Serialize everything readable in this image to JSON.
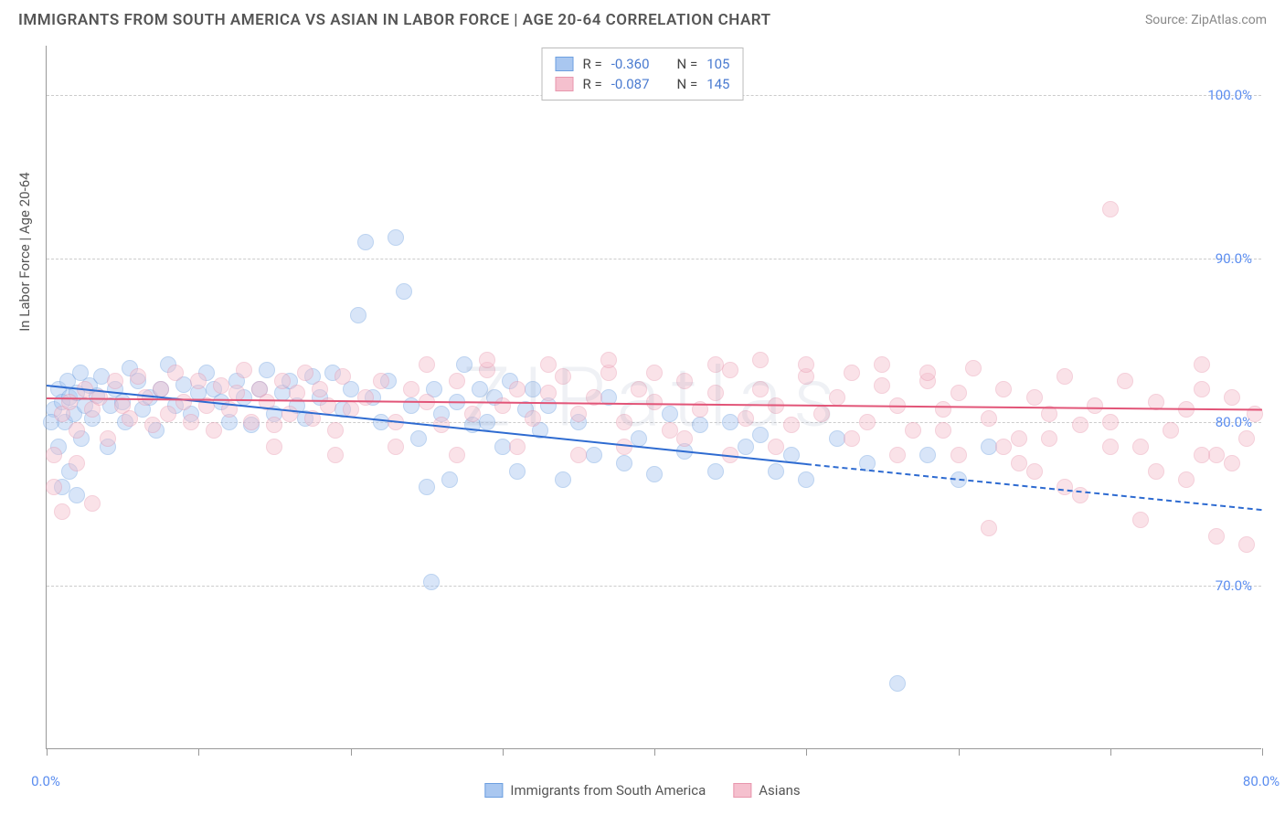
{
  "title": "IMMIGRANTS FROM SOUTH AMERICA VS ASIAN IN LABOR FORCE | AGE 20-64 CORRELATION CHART",
  "source": "Source: ZipAtlas.com",
  "watermark": "ZIPatlas",
  "y_axis_label": "In Labor Force | Age 20-64",
  "chart": {
    "type": "scatter",
    "background_color": "#ffffff",
    "grid_color": "#cccccc",
    "axis_color": "#999999",
    "xlim": [
      0,
      80
    ],
    "ylim": [
      60,
      103
    ],
    "x_ticks": [
      0,
      10,
      20,
      30,
      40,
      50,
      60,
      70,
      80
    ],
    "x_tick_labels_shown": {
      "0": "0.0%",
      "80": "80.0%"
    },
    "y_ticks": [
      70,
      80,
      90,
      100
    ],
    "y_tick_labels": {
      "70": "70.0%",
      "80": "80.0%",
      "90": "90.0%",
      "100": "100.0%"
    },
    "label_color": "#5b8def",
    "label_fontsize": 15,
    "marker_radius": 9,
    "marker_opacity": 0.45,
    "series": [
      {
        "name": "Immigrants from South America",
        "color_fill": "#a9c7f0",
        "color_stroke": "#6d9fe0",
        "trend_color": "#2e6bd1",
        "R": "-0.360",
        "N": "105",
        "trend": {
          "x1": 0,
          "y1": 82.3,
          "x2_solid": 50,
          "y2_solid": 77.5,
          "x2_dash": 80,
          "y2_dash": 74.7
        },
        "points": [
          [
            0.5,
            80.8
          ],
          [
            0.8,
            82.0
          ],
          [
            1.0,
            81.2
          ],
          [
            1.2,
            80.0
          ],
          [
            1.4,
            82.5
          ],
          [
            1.5,
            81.5
          ],
          [
            1.8,
            80.5
          ],
          [
            2.0,
            81.8
          ],
          [
            2.2,
            83.0
          ],
          [
            2.3,
            79.0
          ],
          [
            2.5,
            81.0
          ],
          [
            2.8,
            82.2
          ],
          [
            3.0,
            80.2
          ],
          [
            3.3,
            81.6
          ],
          [
            3.6,
            82.8
          ],
          [
            4.0,
            78.5
          ],
          [
            4.2,
            81.0
          ],
          [
            4.5,
            82.0
          ],
          [
            5.0,
            81.2
          ],
          [
            5.2,
            80.0
          ],
          [
            5.5,
            83.3
          ],
          [
            6.0,
            82.5
          ],
          [
            6.3,
            80.8
          ],
          [
            6.8,
            81.5
          ],
          [
            7.2,
            79.5
          ],
          [
            7.5,
            82.0
          ],
          [
            8.0,
            83.5
          ],
          [
            8.5,
            81.0
          ],
          [
            9.0,
            82.3
          ],
          [
            9.5,
            80.5
          ],
          [
            10.0,
            81.8
          ],
          [
            10.5,
            83.0
          ],
          [
            11.0,
            82.0
          ],
          [
            11.5,
            81.2
          ],
          [
            12.0,
            80.0
          ],
          [
            12.5,
            82.5
          ],
          [
            13.0,
            81.5
          ],
          [
            13.5,
            79.8
          ],
          [
            14.0,
            82.0
          ],
          [
            14.5,
            83.2
          ],
          [
            15.0,
            80.5
          ],
          [
            15.5,
            81.8
          ],
          [
            16.0,
            82.5
          ],
          [
            16.5,
            81.0
          ],
          [
            17.0,
            80.2
          ],
          [
            17.5,
            82.8
          ],
          [
            18.0,
            81.5
          ],
          [
            18.8,
            83.0
          ],
          [
            19.5,
            80.8
          ],
          [
            20.0,
            82.0
          ],
          [
            20.5,
            86.5
          ],
          [
            21.0,
            91.0
          ],
          [
            21.5,
            81.5
          ],
          [
            22.0,
            80.0
          ],
          [
            22.5,
            82.5
          ],
          [
            23.0,
            91.3
          ],
          [
            23.5,
            88.0
          ],
          [
            24.0,
            81.0
          ],
          [
            24.5,
            79.0
          ],
          [
            25.0,
            76.0
          ],
          [
            25.3,
            70.2
          ],
          [
            25.5,
            82.0
          ],
          [
            26.0,
            80.5
          ],
          [
            26.5,
            76.5
          ],
          [
            27.0,
            81.2
          ],
          [
            27.5,
            83.5
          ],
          [
            28.0,
            79.8
          ],
          [
            28.5,
            82.0
          ],
          [
            29.0,
            80.0
          ],
          [
            29.5,
            81.5
          ],
          [
            30.0,
            78.5
          ],
          [
            30.5,
            82.5
          ],
          [
            31.0,
            77.0
          ],
          [
            31.5,
            80.8
          ],
          [
            32.0,
            82.0
          ],
          [
            32.5,
            79.5
          ],
          [
            33.0,
            81.0
          ],
          [
            34.0,
            76.5
          ],
          [
            35.0,
            80.0
          ],
          [
            36.0,
            78.0
          ],
          [
            37.0,
            81.5
          ],
          [
            38.0,
            77.5
          ],
          [
            39.0,
            79.0
          ],
          [
            40.0,
            76.8
          ],
          [
            41.0,
            80.5
          ],
          [
            42.0,
            78.2
          ],
          [
            43.0,
            79.8
          ],
          [
            44.0,
            77.0
          ],
          [
            45.0,
            80.0
          ],
          [
            46.0,
            78.5
          ],
          [
            47.0,
            79.2
          ],
          [
            48.0,
            77.0
          ],
          [
            49.0,
            78.0
          ],
          [
            50.0,
            76.5
          ],
          [
            52.0,
            79.0
          ],
          [
            54.0,
            77.5
          ],
          [
            56.0,
            64.0
          ],
          [
            58.0,
            78.0
          ],
          [
            60.0,
            76.5
          ],
          [
            62.0,
            78.5
          ],
          [
            2.0,
            75.5
          ],
          [
            1.5,
            77.0
          ],
          [
            0.8,
            78.5
          ],
          [
            1.0,
            76.0
          ],
          [
            0.3,
            80.0
          ]
        ]
      },
      {
        "name": "Asians",
        "color_fill": "#f5c0ce",
        "color_stroke": "#e896ad",
        "trend_color": "#e25578",
        "R": "-0.087",
        "N": "145",
        "trend": {
          "x1": 0,
          "y1": 81.5,
          "x2_solid": 80,
          "y2_solid": 80.8,
          "x2_dash": 80,
          "y2_dash": 80.8
        },
        "points": [
          [
            0.5,
            78.0
          ],
          [
            1.0,
            80.5
          ],
          [
            1.5,
            81.2
          ],
          [
            2.0,
            79.5
          ],
          [
            2.5,
            82.0
          ],
          [
            3.0,
            80.8
          ],
          [
            3.5,
            81.5
          ],
          [
            4.0,
            79.0
          ],
          [
            4.5,
            82.5
          ],
          [
            5.0,
            81.0
          ],
          [
            5.5,
            80.2
          ],
          [
            6.0,
            82.8
          ],
          [
            6.5,
            81.5
          ],
          [
            7.0,
            79.8
          ],
          [
            7.5,
            82.0
          ],
          [
            8.0,
            80.5
          ],
          [
            8.5,
            83.0
          ],
          [
            9.0,
            81.2
          ],
          [
            9.5,
            80.0
          ],
          [
            10.0,
            82.5
          ],
          [
            10.5,
            81.0
          ],
          [
            11.0,
            79.5
          ],
          [
            11.5,
            82.2
          ],
          [
            12.0,
            80.8
          ],
          [
            12.5,
            81.8
          ],
          [
            13.0,
            83.2
          ],
          [
            13.5,
            80.0
          ],
          [
            14.0,
            82.0
          ],
          [
            14.5,
            81.2
          ],
          [
            15.0,
            79.8
          ],
          [
            15.5,
            82.5
          ],
          [
            16.0,
            80.5
          ],
          [
            16.5,
            81.8
          ],
          [
            17.0,
            83.0
          ],
          [
            17.5,
            80.2
          ],
          [
            18.0,
            82.0
          ],
          [
            18.5,
            81.0
          ],
          [
            19.0,
            79.5
          ],
          [
            19.5,
            82.8
          ],
          [
            20.0,
            80.8
          ],
          [
            21.0,
            81.5
          ],
          [
            22.0,
            82.5
          ],
          [
            23.0,
            80.0
          ],
          [
            24.0,
            82.0
          ],
          [
            25.0,
            81.2
          ],
          [
            26.0,
            79.8
          ],
          [
            27.0,
            82.5
          ],
          [
            28.0,
            80.5
          ],
          [
            29.0,
            83.2
          ],
          [
            30.0,
            81.0
          ],
          [
            31.0,
            82.0
          ],
          [
            32.0,
            80.2
          ],
          [
            33.0,
            81.8
          ],
          [
            34.0,
            82.8
          ],
          [
            35.0,
            80.5
          ],
          [
            36.0,
            81.5
          ],
          [
            37.0,
            83.0
          ],
          [
            38.0,
            80.0
          ],
          [
            39.0,
            82.0
          ],
          [
            40.0,
            81.2
          ],
          [
            41.0,
            79.5
          ],
          [
            42.0,
            82.5
          ],
          [
            43.0,
            80.8
          ],
          [
            44.0,
            81.8
          ],
          [
            45.0,
            83.2
          ],
          [
            46.0,
            80.2
          ],
          [
            47.0,
            82.0
          ],
          [
            48.0,
            81.0
          ],
          [
            49.0,
            79.8
          ],
          [
            50.0,
            82.8
          ],
          [
            51.0,
            80.5
          ],
          [
            52.0,
            81.5
          ],
          [
            53.0,
            83.0
          ],
          [
            54.0,
            80.0
          ],
          [
            55.0,
            82.2
          ],
          [
            56.0,
            81.0
          ],
          [
            57.0,
            79.5
          ],
          [
            58.0,
            82.5
          ],
          [
            59.0,
            80.8
          ],
          [
            60.0,
            81.8
          ],
          [
            61.0,
            83.3
          ],
          [
            62.0,
            80.2
          ],
          [
            63.0,
            82.0
          ],
          [
            64.0,
            79.0
          ],
          [
            65.0,
            81.5
          ],
          [
            66.0,
            80.5
          ],
          [
            67.0,
            82.8
          ],
          [
            68.0,
            79.8
          ],
          [
            69.0,
            81.0
          ],
          [
            70.0,
            80.0
          ],
          [
            71.0,
            82.5
          ],
          [
            72.0,
            78.5
          ],
          [
            73.0,
            81.2
          ],
          [
            74.0,
            79.5
          ],
          [
            75.0,
            80.8
          ],
          [
            76.0,
            82.0
          ],
          [
            77.0,
            78.0
          ],
          [
            78.0,
            81.5
          ],
          [
            79.0,
            79.0
          ],
          [
            79.5,
            80.5
          ],
          [
            1.0,
            74.5
          ],
          [
            0.5,
            76.0
          ],
          [
            2.0,
            77.5
          ],
          [
            3.0,
            75.0
          ],
          [
            65.0,
            77.0
          ],
          [
            68.0,
            75.5
          ],
          [
            72.0,
            74.0
          ],
          [
            76.0,
            83.5
          ],
          [
            70.0,
            93.0
          ],
          [
            62.0,
            73.5
          ],
          [
            55.0,
            83.5
          ],
          [
            58.0,
            83.0
          ],
          [
            50.0,
            83.5
          ],
          [
            47.0,
            83.8
          ],
          [
            44.0,
            83.5
          ],
          [
            40.0,
            83.0
          ],
          [
            37.0,
            83.8
          ],
          [
            33.0,
            83.5
          ],
          [
            29.0,
            83.8
          ],
          [
            25.0,
            83.5
          ],
          [
            60.0,
            78.0
          ],
          [
            64.0,
            77.5
          ],
          [
            67.0,
            76.0
          ],
          [
            70.0,
            78.5
          ],
          [
            73.0,
            77.0
          ],
          [
            75.0,
            76.5
          ],
          [
            77.0,
            73.0
          ],
          [
            79.0,
            72.5
          ],
          [
            78.0,
            77.5
          ],
          [
            76.0,
            78.0
          ],
          [
            66.0,
            79.0
          ],
          [
            63.0,
            78.5
          ],
          [
            59.0,
            79.5
          ],
          [
            56.0,
            78.0
          ],
          [
            53.0,
            79.0
          ],
          [
            48.0,
            78.5
          ],
          [
            45.0,
            78.0
          ],
          [
            42.0,
            79.0
          ],
          [
            38.0,
            78.5
          ],
          [
            35.0,
            78.0
          ],
          [
            31.0,
            78.5
          ],
          [
            27.0,
            78.0
          ],
          [
            23.0,
            78.5
          ],
          [
            19.0,
            78.0
          ],
          [
            15.0,
            78.5
          ]
        ]
      }
    ]
  },
  "legend_labels": {
    "R": "R =",
    "N": "N ="
  }
}
